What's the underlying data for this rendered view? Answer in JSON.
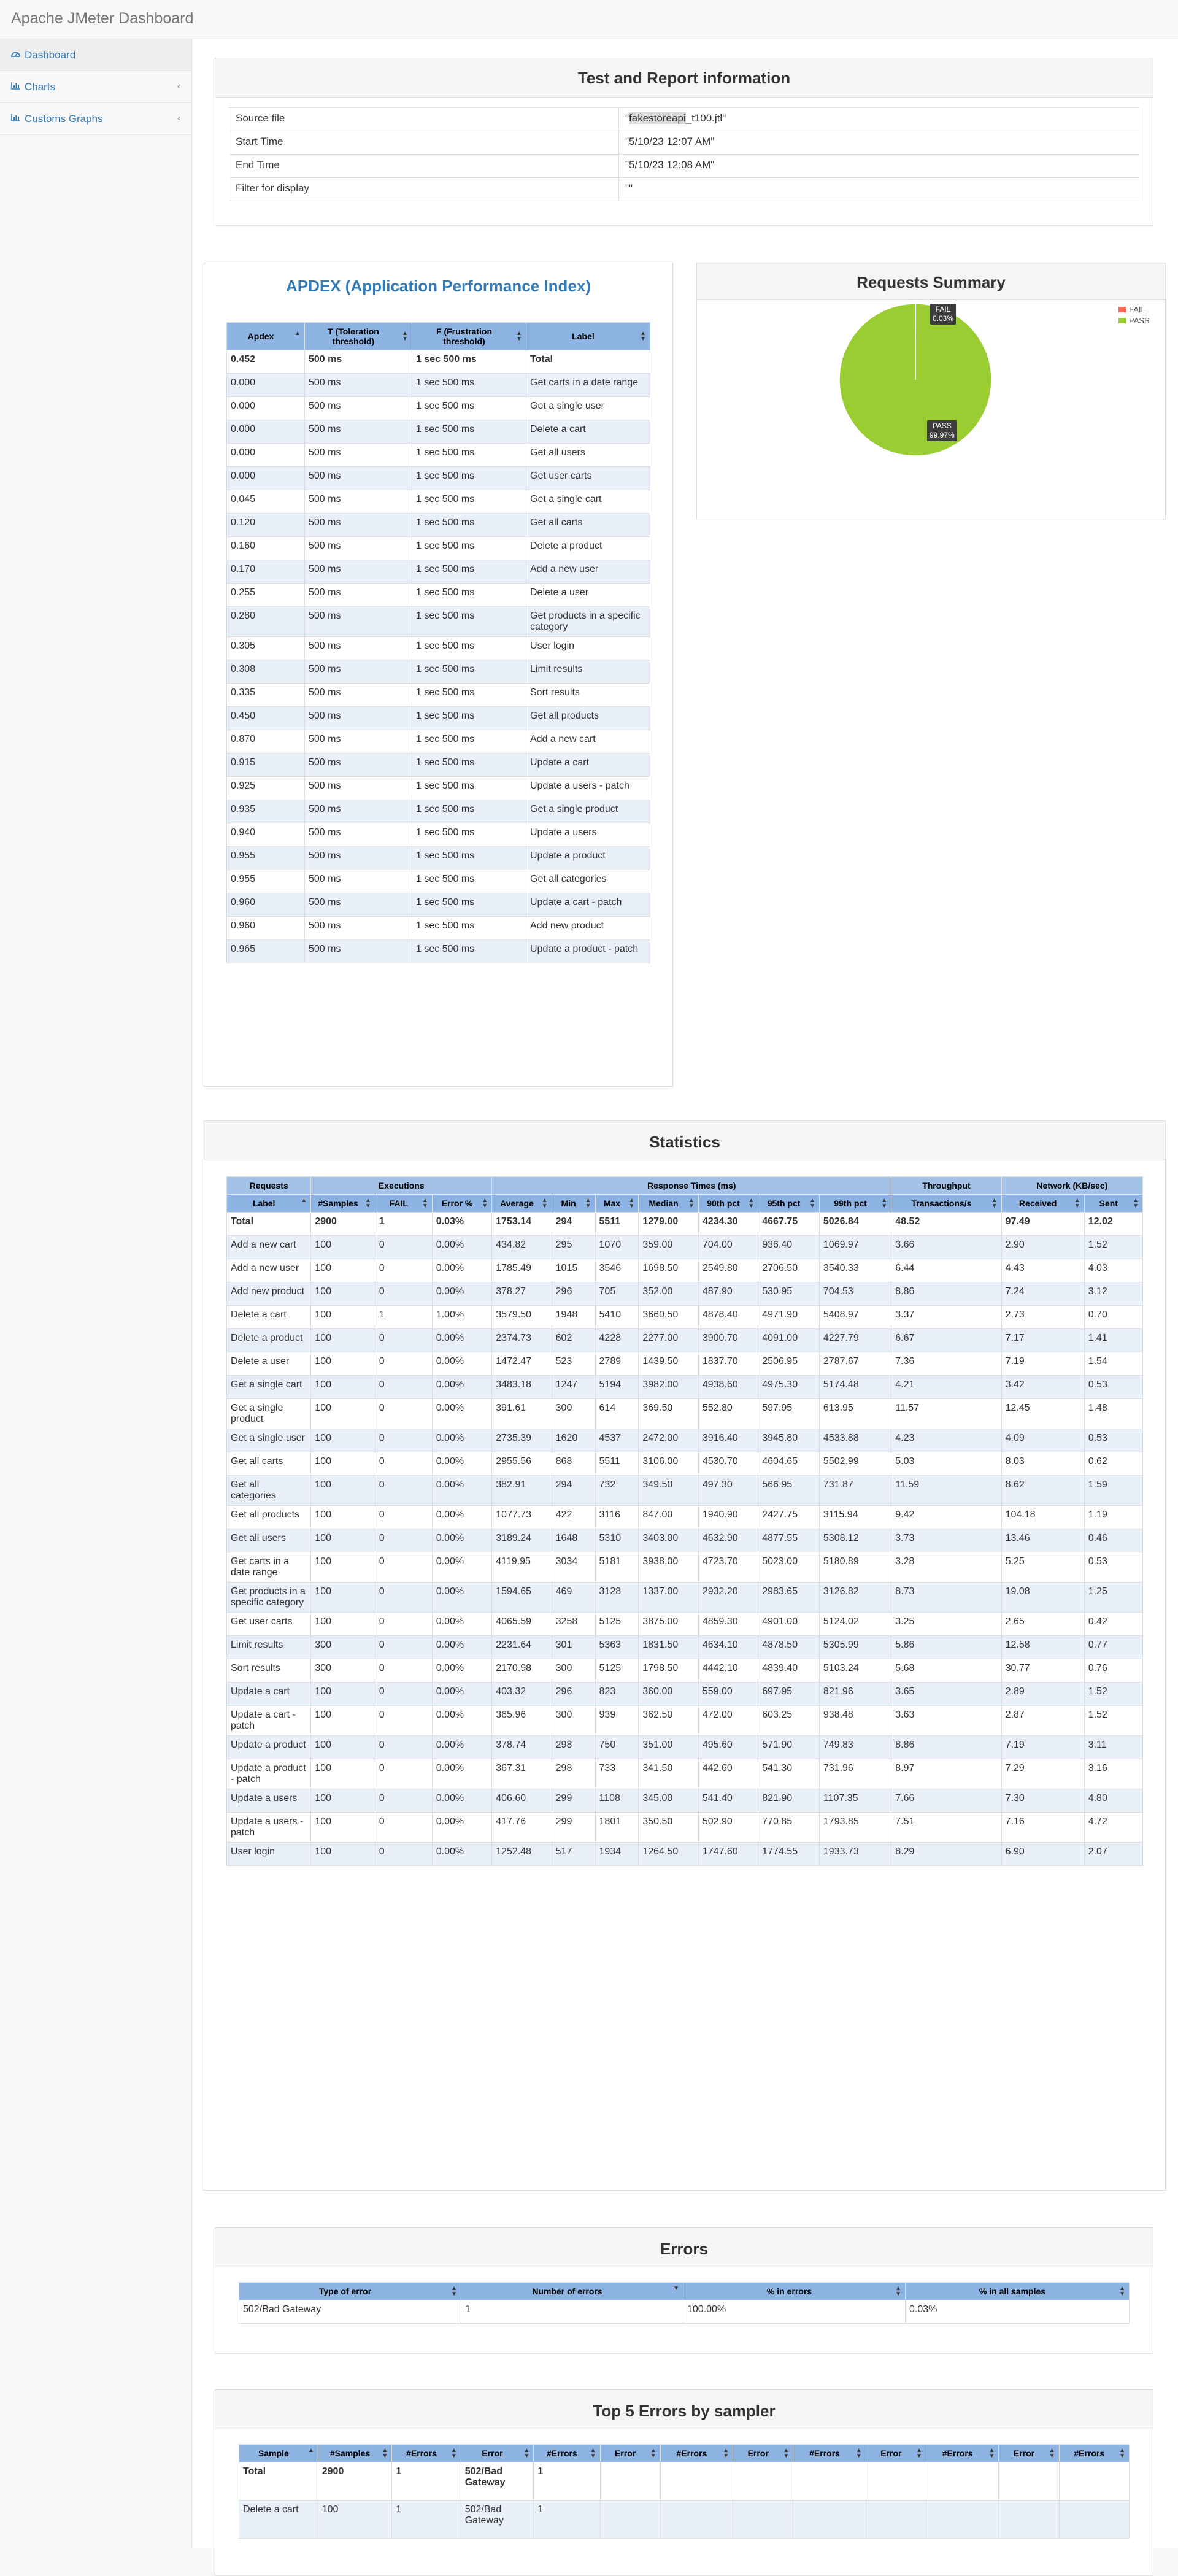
{
  "app": {
    "title": "Apache JMeter Dashboard"
  },
  "sidebar": {
    "items": [
      {
        "label": "Dashboard",
        "icon": "dashboard-icon"
      },
      {
        "label": "Charts",
        "icon": "bar-chart-icon"
      },
      {
        "label": "Customs Graphs",
        "icon": "bar-chart-icon"
      }
    ]
  },
  "info": {
    "title": "Test and Report information",
    "rows": [
      {
        "label": "Source file",
        "value_prefix": "\"",
        "value_hl": "fakestoreapi",
        "value_suffix": "_t100.jtl\""
      },
      {
        "label": "Start Time",
        "value": "\"5/10/23 12:07 AM\""
      },
      {
        "label": "End Time",
        "value": "\"5/10/23 12:08 AM\""
      },
      {
        "label": "Filter for display",
        "value": "\"\""
      }
    ]
  },
  "apdex": {
    "title": "APDEX (Application Performance Index)",
    "headers": [
      "Apdex",
      "T (Toleration threshold)",
      "F (Frustration threshold)",
      "Label"
    ],
    "rows": [
      [
        "0.452",
        "500 ms",
        "1 sec 500 ms",
        "Total"
      ],
      [
        "0.000",
        "500 ms",
        "1 sec 500 ms",
        "Get carts in a date range"
      ],
      [
        "0.000",
        "500 ms",
        "1 sec 500 ms",
        "Get a single user"
      ],
      [
        "0.000",
        "500 ms",
        "1 sec 500 ms",
        "Delete a cart"
      ],
      [
        "0.000",
        "500 ms",
        "1 sec 500 ms",
        "Get all users"
      ],
      [
        "0.000",
        "500 ms",
        "1 sec 500 ms",
        "Get user carts"
      ],
      [
        "0.045",
        "500 ms",
        "1 sec 500 ms",
        "Get a single cart"
      ],
      [
        "0.120",
        "500 ms",
        "1 sec 500 ms",
        "Get all carts"
      ],
      [
        "0.160",
        "500 ms",
        "1 sec 500 ms",
        "Delete a product"
      ],
      [
        "0.170",
        "500 ms",
        "1 sec 500 ms",
        "Add a new user"
      ],
      [
        "0.255",
        "500 ms",
        "1 sec 500 ms",
        "Delete a user"
      ],
      [
        "0.280",
        "500 ms",
        "1 sec 500 ms",
        "Get products in a specific category"
      ],
      [
        "0.305",
        "500 ms",
        "1 sec 500 ms",
        "User login"
      ],
      [
        "0.308",
        "500 ms",
        "1 sec 500 ms",
        "Limit results"
      ],
      [
        "0.335",
        "500 ms",
        "1 sec 500 ms",
        "Sort results"
      ],
      [
        "0.450",
        "500 ms",
        "1 sec 500 ms",
        "Get all products"
      ],
      [
        "0.870",
        "500 ms",
        "1 sec 500 ms",
        "Add a new cart"
      ],
      [
        "0.915",
        "500 ms",
        "1 sec 500 ms",
        "Update a cart"
      ],
      [
        "0.925",
        "500 ms",
        "1 sec 500 ms",
        "Update a users - patch"
      ],
      [
        "0.935",
        "500 ms",
        "1 sec 500 ms",
        "Get a single product"
      ],
      [
        "0.940",
        "500 ms",
        "1 sec 500 ms",
        "Update a users"
      ],
      [
        "0.955",
        "500 ms",
        "1 sec 500 ms",
        "Update a product"
      ],
      [
        "0.955",
        "500 ms",
        "1 sec 500 ms",
        "Get all categories"
      ],
      [
        "0.960",
        "500 ms",
        "1 sec 500 ms",
        "Update a cart - patch"
      ],
      [
        "0.960",
        "500 ms",
        "1 sec 500 ms",
        "Add new product"
      ],
      [
        "0.965",
        "500 ms",
        "1 sec 500 ms",
        "Update a product - patch"
      ]
    ]
  },
  "summary": {
    "title": "Requests Summary",
    "colors": {
      "fail": "#ff6a5a",
      "pass": "#9acd32"
    },
    "chart_data": {
      "type": "pie",
      "categories": [
        "FAIL",
        "PASS"
      ],
      "values": [
        0.03,
        99.97
      ],
      "labels": [
        "0.03%",
        "99.97%"
      ],
      "legend": "top-right"
    }
  },
  "stats": {
    "title": "Statistics",
    "groups": [
      "Requests",
      "Executions",
      "Response Times (ms)",
      "Throughput",
      "Network (KB/sec)"
    ],
    "headers": [
      "Label",
      "#Samples",
      "FAIL",
      "Error %",
      "Average",
      "Min",
      "Max",
      "Median",
      "90th pct",
      "95th pct",
      "99th pct",
      "Transactions/s",
      "Received",
      "Sent"
    ],
    "rows": [
      [
        "Total",
        "2900",
        "1",
        "0.03%",
        "1753.14",
        "294",
        "5511",
        "1279.00",
        "4234.30",
        "4667.75",
        "5026.84",
        "48.52",
        "97.49",
        "12.02"
      ],
      [
        "Add a new cart",
        "100",
        "0",
        "0.00%",
        "434.82",
        "295",
        "1070",
        "359.00",
        "704.00",
        "936.40",
        "1069.97",
        "3.66",
        "2.90",
        "1.52"
      ],
      [
        "Add a new user",
        "100",
        "0",
        "0.00%",
        "1785.49",
        "1015",
        "3546",
        "1698.50",
        "2549.80",
        "2706.50",
        "3540.33",
        "6.44",
        "4.43",
        "4.03"
      ],
      [
        "Add new product",
        "100",
        "0",
        "0.00%",
        "378.27",
        "296",
        "705",
        "352.00",
        "487.90",
        "530.95",
        "704.53",
        "8.86",
        "7.24",
        "3.12"
      ],
      [
        "Delete a cart",
        "100",
        "1",
        "1.00%",
        "3579.50",
        "1948",
        "5410",
        "3660.50",
        "4878.40",
        "4971.90",
        "5408.97",
        "3.37",
        "2.73",
        "0.70"
      ],
      [
        "Delete a product",
        "100",
        "0",
        "0.00%",
        "2374.73",
        "602",
        "4228",
        "2277.00",
        "3900.70",
        "4091.00",
        "4227.79",
        "6.67",
        "7.17",
        "1.41"
      ],
      [
        "Delete a user",
        "100",
        "0",
        "0.00%",
        "1472.47",
        "523",
        "2789",
        "1439.50",
        "1837.70",
        "2506.95",
        "2787.67",
        "7.36",
        "7.19",
        "1.54"
      ],
      [
        "Get a single cart",
        "100",
        "0",
        "0.00%",
        "3483.18",
        "1247",
        "5194",
        "3982.00",
        "4938.60",
        "4975.30",
        "5174.48",
        "4.21",
        "3.42",
        "0.53"
      ],
      [
        "Get a single product",
        "100",
        "0",
        "0.00%",
        "391.61",
        "300",
        "614",
        "369.50",
        "552.80",
        "597.95",
        "613.95",
        "11.57",
        "12.45",
        "1.48"
      ],
      [
        "Get a single user",
        "100",
        "0",
        "0.00%",
        "2735.39",
        "1620",
        "4537",
        "2472.00",
        "3916.40",
        "3945.80",
        "4533.88",
        "4.23",
        "4.09",
        "0.53"
      ],
      [
        "Get all carts",
        "100",
        "0",
        "0.00%",
        "2955.56",
        "868",
        "5511",
        "3106.00",
        "4530.70",
        "4604.65",
        "5502.99",
        "5.03",
        "8.03",
        "0.62"
      ],
      [
        "Get all categories",
        "100",
        "0",
        "0.00%",
        "382.91",
        "294",
        "732",
        "349.50",
        "497.30",
        "566.95",
        "731.87",
        "11.59",
        "8.62",
        "1.59"
      ],
      [
        "Get all products",
        "100",
        "0",
        "0.00%",
        "1077.73",
        "422",
        "3116",
        "847.00",
        "1940.90",
        "2427.75",
        "3115.94",
        "9.42",
        "104.18",
        "1.19"
      ],
      [
        "Get all users",
        "100",
        "0",
        "0.00%",
        "3189.24",
        "1648",
        "5310",
        "3403.00",
        "4632.90",
        "4877.55",
        "5308.12",
        "3.73",
        "13.46",
        "0.46"
      ],
      [
        "Get carts in a date range",
        "100",
        "0",
        "0.00%",
        "4119.95",
        "3034",
        "5181",
        "3938.00",
        "4723.70",
        "5023.00",
        "5180.89",
        "3.28",
        "5.25",
        "0.53"
      ],
      [
        "Get products in a specific category",
        "100",
        "0",
        "0.00%",
        "1594.65",
        "469",
        "3128",
        "1337.00",
        "2932.20",
        "2983.65",
        "3126.82",
        "8.73",
        "19.08",
        "1.25"
      ],
      [
        "Get user carts",
        "100",
        "0",
        "0.00%",
        "4065.59",
        "3258",
        "5125",
        "3875.00",
        "4859.30",
        "4901.00",
        "5124.02",
        "3.25",
        "2.65",
        "0.42"
      ],
      [
        "Limit results",
        "300",
        "0",
        "0.00%",
        "2231.64",
        "301",
        "5363",
        "1831.50",
        "4634.10",
        "4878.50",
        "5305.99",
        "5.86",
        "12.58",
        "0.77"
      ],
      [
        "Sort results",
        "300",
        "0",
        "0.00%",
        "2170.98",
        "300",
        "5125",
        "1798.50",
        "4442.10",
        "4839.40",
        "5103.24",
        "5.68",
        "30.77",
        "0.76"
      ],
      [
        "Update a cart",
        "100",
        "0",
        "0.00%",
        "403.32",
        "296",
        "823",
        "360.00",
        "559.00",
        "697.95",
        "821.96",
        "3.65",
        "2.89",
        "1.52"
      ],
      [
        "Update a cart - patch",
        "100",
        "0",
        "0.00%",
        "365.96",
        "300",
        "939",
        "362.50",
        "472.00",
        "603.25",
        "938.48",
        "3.63",
        "2.87",
        "1.52"
      ],
      [
        "Update a product",
        "100",
        "0",
        "0.00%",
        "378.74",
        "298",
        "750",
        "351.00",
        "495.60",
        "571.90",
        "749.83",
        "8.86",
        "7.19",
        "3.11"
      ],
      [
        "Update a product - patch",
        "100",
        "0",
        "0.00%",
        "367.31",
        "298",
        "733",
        "341.50",
        "442.60",
        "541.30",
        "731.96",
        "8.97",
        "7.29",
        "3.16"
      ],
      [
        "Update a users",
        "100",
        "0",
        "0.00%",
        "406.60",
        "299",
        "1108",
        "345.00",
        "541.40",
        "821.90",
        "1107.35",
        "7.66",
        "7.30",
        "4.80"
      ],
      [
        "Update a users - patch",
        "100",
        "0",
        "0.00%",
        "417.76",
        "299",
        "1801",
        "350.50",
        "502.90",
        "770.85",
        "1793.85",
        "7.51",
        "7.16",
        "4.72"
      ],
      [
        "User login",
        "100",
        "0",
        "0.00%",
        "1252.48",
        "517",
        "1934",
        "1264.50",
        "1747.60",
        "1774.55",
        "1933.73",
        "8.29",
        "6.90",
        "2.07"
      ]
    ]
  },
  "errors": {
    "title": "Errors",
    "headers": [
      "Type of error",
      "Number of errors",
      "% in errors",
      "% in all samples"
    ],
    "rows": [
      [
        "502/Bad Gateway",
        "1",
        "100.00%",
        "0.03%"
      ]
    ]
  },
  "top5": {
    "title": "Top 5 Errors by sampler",
    "headers": [
      "Sample",
      "#Samples",
      "#Errors",
      "Error",
      "#Errors",
      "Error",
      "#Errors",
      "Error",
      "#Errors",
      "Error",
      "#Errors",
      "Error",
      "#Errors"
    ],
    "rows": [
      [
        "Total",
        "2900",
        "1",
        "502/Bad Gateway",
        "1",
        "",
        "",
        "",
        "",
        "",
        "",
        "",
        ""
      ],
      [
        "Delete a cart",
        "100",
        "1",
        "502/Bad Gateway",
        "1",
        "",
        "",
        "",
        "",
        "",
        "",
        "",
        ""
      ]
    ]
  }
}
